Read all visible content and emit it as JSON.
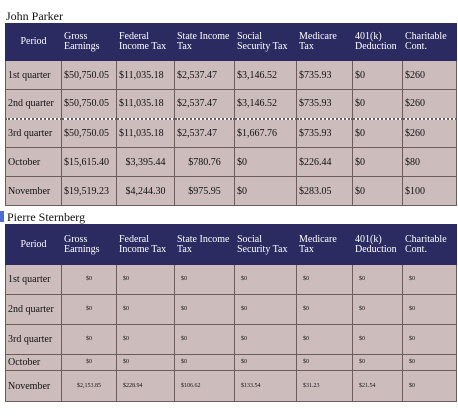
{
  "sections": [
    {
      "name": "John Parker",
      "headers": [
        "Period",
        "Gross Earnings",
        "Federal Income Tax",
        "State Income Tax",
        "Social Security Tax",
        "Medicare Tax",
        "401(k) Deduction",
        "Charitable Cont."
      ],
      "rows": [
        [
          "1st quarter",
          "$50,750.05",
          "$11,035.18",
          "$2,537.47",
          "$3,146.52",
          "$735.93",
          "$0",
          "$260"
        ],
        [
          "2nd quarter",
          "$50,750.05",
          "$11,035.18",
          "$2,537.47",
          "$3,146.52",
          "$735.93",
          "$0",
          "$260"
        ],
        [
          "3rd quarter",
          "$50,750.05",
          "$11,035.18",
          "$2,537.47",
          "$1,667.76",
          "$735.93",
          "$0",
          "$260"
        ],
        [
          "October",
          "$15,615.40",
          "$3,395.44",
          "$780.76",
          "$0",
          "$226.44",
          "$0",
          "$80"
        ],
        [
          "November",
          "$19,519.23",
          "$4,244.30",
          "$975.95",
          "$0",
          "$283.05",
          "$0",
          "$100"
        ]
      ]
    },
    {
      "name": "Pierre Sternberg",
      "headers": [
        "Period",
        "Gross Earnings",
        "Federal Income Tax",
        "State Income Tax",
        "Social Security Tax",
        "Medicare Tax",
        "401(k) Deduction",
        "Charitable Cont."
      ],
      "rows": [
        [
          "1st quarter",
          "$0",
          "$0",
          "$0",
          "$0",
          "$0",
          "$0",
          "$0"
        ],
        [
          "2nd quarter",
          "$0",
          "$0",
          "$0",
          "$0",
          "$0",
          "$0",
          "$0"
        ],
        [
          "3rd quarter",
          "$0",
          "$0",
          "$0",
          "$0",
          "$0",
          "$0",
          "$0"
        ],
        [
          "October",
          "$0",
          "$0",
          "$0",
          "$0",
          "$0",
          "$0",
          "$0"
        ],
        [
          "November",
          "$2,153.85",
          "$228.94",
          "$106.62",
          "$133.54",
          "$31.23",
          "$21.54",
          "$0"
        ]
      ]
    }
  ]
}
